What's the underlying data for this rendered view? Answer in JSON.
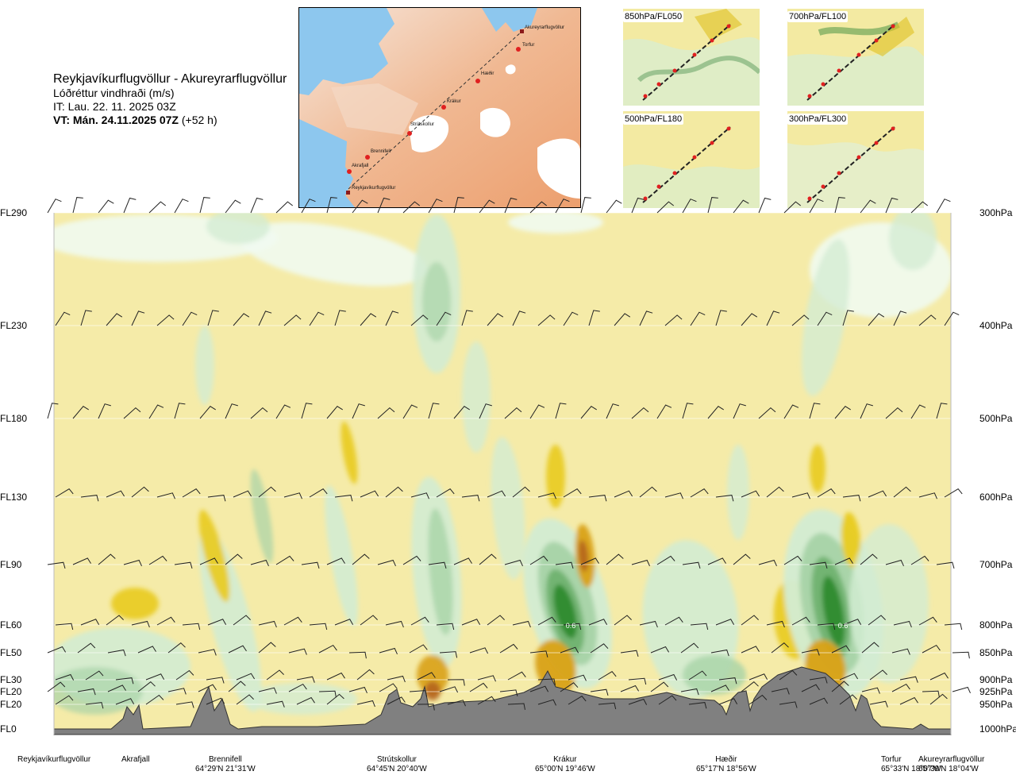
{
  "header": {
    "route": "Reykjavíkurflugvöllur - Akureyrarflugvöllur",
    "variable": "Lóðréttur vindhraði (m/s)",
    "initial_time": "IT: Lau. 22. 11. 2025 03Z",
    "valid_time": "VT: Mán. 24.11.2025 07Z",
    "lead": "(+52 h)"
  },
  "map": {
    "waypoints": [
      "Akureyrarflugvöllur",
      "Torfur",
      "Hæðir",
      "Krákur",
      "Strútskollur",
      "Brennifell",
      "Akrafjall",
      "Reykjavíkurflugvöllur"
    ]
  },
  "insets": [
    "850hPa/FL050",
    "700hPa/FL100",
    "500hPa/FL180",
    "300hPa/FL300"
  ],
  "colors": {
    "positive_1": "#f6ef9e",
    "positive_2": "#e9cb1d",
    "positive_3": "#d9a114",
    "positive_4": "#b5651d",
    "negative_1": "#f1fbf1",
    "negative_2": "#d3ecd3",
    "negative_3": "#a8d3a8",
    "negative_4": "#6fb26f",
    "negative_5": "#2e8b2e",
    "negative_6": "#0e5c33",
    "terrain": "#808080",
    "background": "#f5eba8"
  },
  "chart_data": {
    "type": "heatmap",
    "title": "Reykjavíkurflugvöllur - Akureyrarflugvöllur",
    "variable": "Lóðréttur vindhraði (m/s)",
    "y_levels": [
      {
        "fl": "FL290",
        "hpa": "300hPa"
      },
      {
        "fl": "FL230",
        "hpa": "400hPa"
      },
      {
        "fl": "FL180",
        "hpa": "500hPa"
      },
      {
        "fl": "FL130",
        "hpa": "600hPa"
      },
      {
        "fl": "FL90",
        "hpa": "700hPa"
      },
      {
        "fl": "FL60",
        "hpa": "800hPa"
      },
      {
        "fl": "FL50",
        "hpa": "850hPa"
      },
      {
        "fl": "FL30",
        "hpa": "900hPa"
      },
      {
        "fl": "FL20",
        "hpa": "925hPa"
      },
      {
        "fl": "FL20",
        "hpa": "950hPa"
      },
      {
        "fl": "FL0",
        "hpa": "1000hPa"
      }
    ],
    "stations": [
      {
        "name": "Reykjavíkurflugvöllur",
        "coord": ""
      },
      {
        "name": "Akrafjall",
        "coord": ""
      },
      {
        "name": "Brennifell",
        "coord": "64°29'N 21°31'W"
      },
      {
        "name": "Strútskollur",
        "coord": "64°45'N 20°40'W"
      },
      {
        "name": "Krákur",
        "coord": "65°00'N 19°46'W"
      },
      {
        "name": "Hæðir",
        "coord": "65°17'N 18°56'W"
      },
      {
        "name": "Torfur",
        "coord": "65°33'N 18°07'W"
      },
      {
        "name": "Akureyrarflugvöllur",
        "coord": "65°39'N 18°04'W"
      }
    ],
    "annotations": [
      {
        "text": "0.6",
        "near": "Krákur",
        "level_hpa": 800
      },
      {
        "text": "0.6",
        "near": "Torfur",
        "level_hpa": 800
      }
    ],
    "barb_levels_hpa": [
      300,
      400,
      500,
      600,
      700,
      800,
      850,
      900,
      925,
      950
    ]
  }
}
